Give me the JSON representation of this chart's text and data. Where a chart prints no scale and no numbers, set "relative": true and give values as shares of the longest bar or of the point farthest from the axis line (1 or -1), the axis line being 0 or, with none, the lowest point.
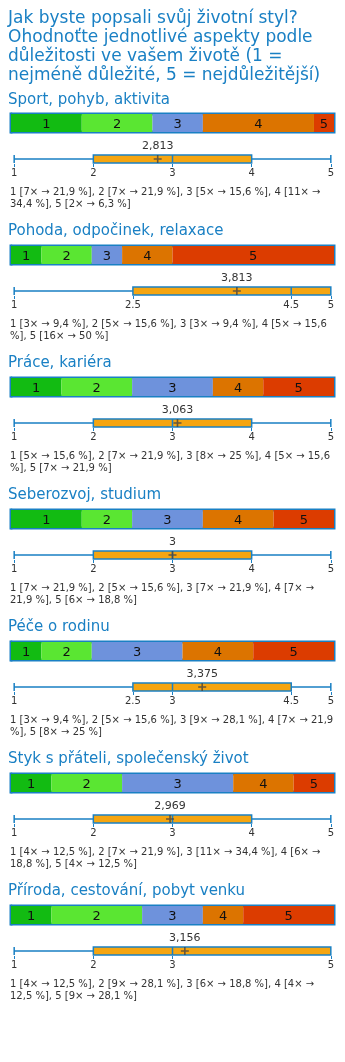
{
  "chart_data": [
    {
      "type": "bar",
      "title": "Jak byste popsali svůj životní styl? Ohodnoťte jednotlivé aspekty podle důležitosti ve vašem životě (1 = nejméně důležité, 5 = nejdůležitější)",
      "subtitle": "Sport, pohyb, aktivita",
      "orientation": "horizontal",
      "stacked": true,
      "relative": true,
      "categories": [
        null
      ],
      "series": [
        {
          "name": "1",
          "color": "#12bb12",
          "values": [
            0.219
          ]
        },
        {
          "name": "2",
          "color": "#5ae632",
          "values": [
            0.219
          ]
        },
        {
          "name": "3",
          "color": "#6e92dc",
          "values": [
            0.156
          ]
        },
        {
          "name": "4",
          "color": "#dc7400",
          "values": [
            0.344
          ]
        },
        {
          "name": "5",
          "color": "#dc3c00",
          "values": [
            0.062
          ]
        }
      ]
    },
    {
      "type": "box",
      "orientation": "horizontal",
      "categories": [
        null
      ],
      "color": "#f5a511",
      "marker": "cross",
      "boxes": [
        {
          "low": 1,
          "q1": 2,
          "median": 3,
          "q3": 4,
          "high": 5,
          "mean": 2.813
        }
      ],
      "xlim": [
        1,
        5
      ],
      "xticks": [
        1,
        2,
        3,
        4,
        5
      ],
      "annotations": [
        "2,813",
        "1 [7× → 21,9 %], 2 [7× → 21,9 %], 3 [5× → 15,6 %], 4 [11× → 34,4 %], 5 [2× → 6,3 %]"
      ]
    },
    {
      "type": "bar",
      "title": "Pohoda, odpočinek, relaxace",
      "orientation": "horizontal",
      "stacked": true,
      "relative": true,
      "categories": [
        null
      ],
      "series": [
        {
          "name": "1",
          "color": "#12bb12",
          "values": [
            0.094
          ]
        },
        {
          "name": "2",
          "color": "#5ae632",
          "values": [
            0.156
          ]
        },
        {
          "name": "3",
          "color": "#6e92dc",
          "values": [
            0.094
          ]
        },
        {
          "name": "4",
          "color": "#dc7400",
          "values": [
            0.156
          ]
        },
        {
          "name": "5",
          "color": "#dc3c00",
          "values": [
            0.5
          ]
        }
      ]
    },
    {
      "type": "box",
      "orientation": "horizontal",
      "categories": [
        null
      ],
      "color": "#f5a511",
      "marker": "cross",
      "boxes": [
        {
          "low": 1,
          "q1": 2.5,
          "median": 4.5,
          "q3": 5,
          "high": 5,
          "mean": 3.813
        }
      ],
      "xlim": [
        1,
        5
      ],
      "xticks": [
        1,
        2.5,
        4.5,
        5
      ],
      "annotations": [
        "3,813",
        "1 [3× → 9,4 %], 2 [5× → 15,6 %], 3 [3× → 9,4 %], 4 [5× → 15,6 %], 5 [16× → 50 %]"
      ]
    },
    {
      "type": "bar",
      "title": "Práce, kariéra",
      "orientation": "horizontal",
      "stacked": true,
      "relative": true,
      "categories": [
        null
      ],
      "series": [
        {
          "name": "1",
          "color": "#12bb12",
          "values": [
            0.156
          ]
        },
        {
          "name": "2",
          "color": "#5ae632",
          "values": [
            0.219
          ]
        },
        {
          "name": "3",
          "color": "#6e92dc",
          "values": [
            0.25
          ]
        },
        {
          "name": "4",
          "color": "#dc7400",
          "values": [
            0.156
          ]
        },
        {
          "name": "5",
          "color": "#dc3c00",
          "values": [
            0.219
          ]
        }
      ]
    },
    {
      "type": "box",
      "orientation": "horizontal",
      "categories": [
        null
      ],
      "color": "#f5a511",
      "marker": "cross",
      "boxes": [
        {
          "low": 1,
          "q1": 2,
          "median": 3,
          "q3": 4,
          "high": 5,
          "mean": 3.063
        }
      ],
      "xlim": [
        1,
        5
      ],
      "xticks": [
        1,
        2,
        3,
        4,
        5
      ],
      "annotations": [
        "3,063",
        "1 [5× → 15,6 %], 2 [7× → 21,9 %], 3 [8× → 25 %], 4 [5× → 15,6 %], 5 [7× → 21,9 %]"
      ]
    },
    {
      "type": "bar",
      "title": "Seberozvoj, studium",
      "orientation": "horizontal",
      "stacked": true,
      "relative": true,
      "categories": [
        null
      ],
      "series": [
        {
          "name": "1",
          "color": "#12bb12",
          "values": [
            0.219
          ]
        },
        {
          "name": "2",
          "color": "#5ae632",
          "values": [
            0.156
          ]
        },
        {
          "name": "3",
          "color": "#6e92dc",
          "values": [
            0.219
          ]
        },
        {
          "name": "4",
          "color": "#dc7400",
          "values": [
            0.219
          ]
        },
        {
          "name": "5",
          "color": "#dc3c00",
          "values": [
            0.187
          ]
        }
      ]
    },
    {
      "type": "box",
      "orientation": "horizontal",
      "categories": [
        null
      ],
      "color": "#f5a511",
      "marker": "cross",
      "boxes": [
        {
          "low": 1,
          "q1": 2,
          "median": 3,
          "q3": 4,
          "high": 5,
          "mean": 3
        }
      ],
      "xlim": [
        1,
        5
      ],
      "xticks": [
        1,
        2,
        3,
        4,
        5
      ],
      "annotations": [
        "3",
        "1 [7× → 21,9 %], 2 [5× → 15,6 %], 3 [7× → 21,9 %], 4 [7× → 21,9 %], 5 [6× → 18,8 %]"
      ]
    },
    {
      "type": "bar",
      "title": "Péče o rodinu",
      "orientation": "horizontal",
      "stacked": true,
      "relative": true,
      "categories": [
        null
      ],
      "series": [
        {
          "name": "1",
          "color": "#12bb12",
          "values": [
            0.094
          ]
        },
        {
          "name": "2",
          "color": "#5ae632",
          "values": [
            0.156
          ]
        },
        {
          "name": "3",
          "color": "#6e92dc",
          "values": [
            0.281
          ]
        },
        {
          "name": "4",
          "color": "#dc7400",
          "values": [
            0.219
          ]
        },
        {
          "name": "5",
          "color": "#dc3c00",
          "values": [
            0.25
          ]
        }
      ]
    },
    {
      "type": "box",
      "orientation": "horizontal",
      "categories": [
        null
      ],
      "color": "#f5a511",
      "marker": "cross",
      "boxes": [
        {
          "low": 1,
          "q1": 2.5,
          "median": 3,
          "q3": 4.5,
          "high": 5,
          "mean": 3.375
        }
      ],
      "xlim": [
        1,
        5
      ],
      "xticks": [
        1,
        2.5,
        3,
        4.5,
        5
      ],
      "annotations": [
        "3,375",
        "1 [3× → 9,4 %], 2 [5× → 15,6 %], 3 [9× → 28,1 %], 4 [7× → 21,9 %], 5 [8× → 25 %]"
      ]
    },
    {
      "type": "bar",
      "title": "Styk s přáteli, společenský život",
      "orientation": "horizontal",
      "stacked": true,
      "relative": true,
      "categories": [
        null
      ],
      "series": [
        {
          "name": "1",
          "color": "#12bb12",
          "values": [
            0.125
          ]
        },
        {
          "name": "2",
          "color": "#5ae632",
          "values": [
            0.219
          ]
        },
        {
          "name": "3",
          "color": "#6e92dc",
          "values": [
            0.344
          ]
        },
        {
          "name": "4",
          "color": "#dc7400",
          "values": [
            0.187
          ]
        },
        {
          "name": "5",
          "color": "#dc3c00",
          "values": [
            0.125
          ]
        }
      ]
    },
    {
      "type": "box",
      "orientation": "horizontal",
      "categories": [
        null
      ],
      "color": "#f5a511",
      "marker": "cross",
      "boxes": [
        {
          "low": 1,
          "q1": 2,
          "median": 3,
          "q3": 4,
          "high": 5,
          "mean": 2.969
        }
      ],
      "xlim": [
        1,
        5
      ],
      "xticks": [
        1,
        2,
        3,
        4,
        5
      ],
      "annotations": [
        "2,969",
        "1 [4× → 12,5 %], 2 [7× → 21,9 %], 3 [11× → 34,4 %], 4 [6× → 18,8 %], 5 [4× → 12,5 %]"
      ]
    },
    {
      "type": "bar",
      "title": "Příroda, cestování, pobyt venku",
      "orientation": "horizontal",
      "stacked": true,
      "relative": true,
      "categories": [
        null
      ],
      "series": [
        {
          "name": "1",
          "color": "#12bb12",
          "values": [
            0.125
          ]
        },
        {
          "name": "2",
          "color": "#5ae632",
          "values": [
            0.281
          ]
        },
        {
          "name": "3",
          "color": "#6e92dc",
          "values": [
            0.188
          ]
        },
        {
          "name": "4",
          "color": "#dc7400",
          "values": [
            0.125
          ]
        },
        {
          "name": "5",
          "color": "#dc3c00",
          "values": [
            0.281
          ]
        }
      ]
    },
    {
      "type": "box",
      "orientation": "horizontal",
      "categories": [
        null
      ],
      "color": "#f5a511",
      "marker": "cross",
      "boxes": [
        {
          "low": 1,
          "q1": 2,
          "median": 3,
          "q3": 5,
          "high": 5,
          "mean": 3.156
        }
      ],
      "xlim": [
        1,
        5
      ],
      "xticks": [
        1,
        2,
        3,
        5
      ],
      "annotations": [
        "3,156",
        "1 [4× → 12,5 %], 2 [9× → 28,1 %], 3 [6× → 18,8 %], 4 [4× → 12,5 %], 5 [9× → 28,1 %]"
      ]
    }
  ]
}
